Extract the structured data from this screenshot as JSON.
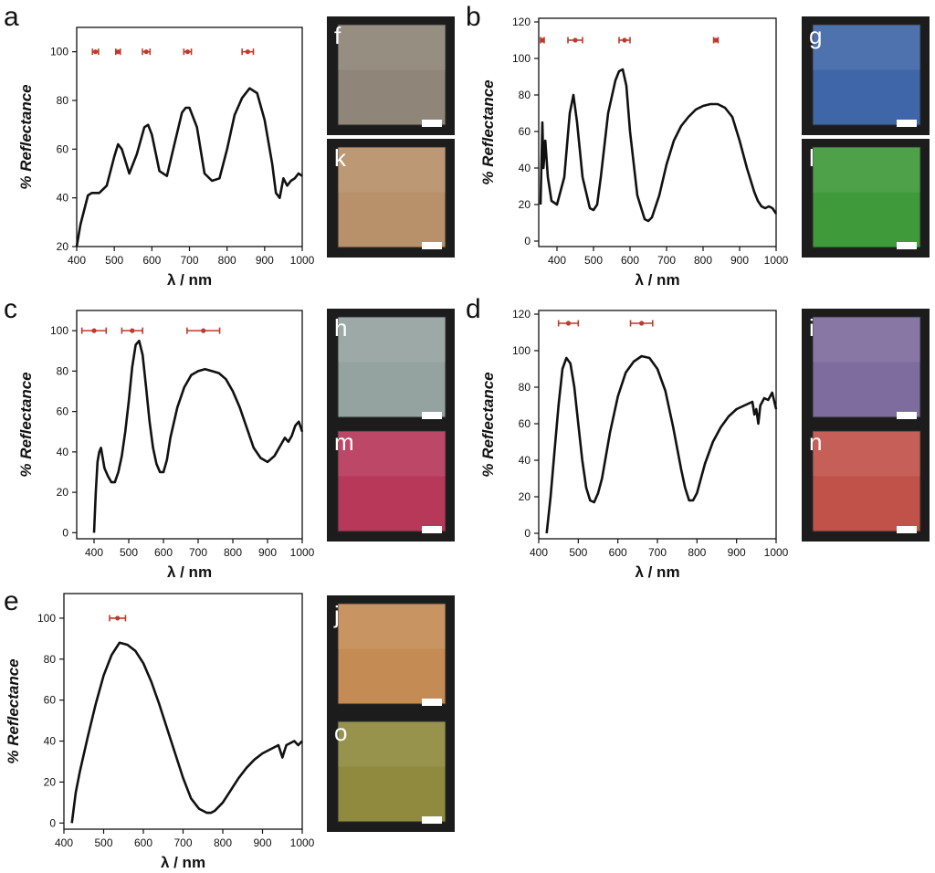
{
  "figure": {
    "colors": {
      "curve": "#111111",
      "marker": "#c0392b",
      "scale_bar": "#ffffff"
    }
  },
  "chart_data": [
    {
      "panel": "a",
      "type": "line",
      "xlabel": "λ / nm",
      "ylabel": "% Reflectance",
      "xlim": [
        400,
        1000
      ],
      "ylim": [
        20,
        110
      ],
      "xticks": [
        400,
        500,
        600,
        700,
        800,
        900,
        1000
      ],
      "yticks": [
        20,
        40,
        60,
        80,
        100
      ],
      "series": [
        {
          "name": "a",
          "x": [
            400,
            410,
            420,
            430,
            440,
            460,
            480,
            500,
            510,
            520,
            540,
            560,
            580,
            590,
            600,
            620,
            640,
            660,
            680,
            690,
            700,
            720,
            740,
            760,
            780,
            800,
            820,
            840,
            860,
            880,
            900,
            920,
            930,
            940,
            950,
            960,
            970,
            980,
            990,
            1000
          ],
          "y": [
            20,
            29,
            35,
            41,
            42,
            42,
            45,
            57,
            62,
            60,
            50,
            58,
            69,
            70,
            66,
            51,
            49,
            62,
            75,
            77,
            77,
            69,
            50,
            47,
            48,
            60,
            74,
            81,
            85,
            83,
            72,
            54,
            42,
            40,
            48,
            45,
            47,
            48,
            50,
            49
          ]
        }
      ],
      "markers": [
        {
          "x": 450,
          "err": 8,
          "y": 100
        },
        {
          "x": 510,
          "err": 6,
          "y": 100
        },
        {
          "x": 585,
          "err": 10,
          "y": 100
        },
        {
          "x": 695,
          "err": 10,
          "y": 100
        },
        {
          "x": 855,
          "err": 15,
          "y": 100
        }
      ]
    },
    {
      "panel": "b",
      "type": "line",
      "xlabel": "λ / nm",
      "ylabel": "% Reflectance",
      "xlim": [
        350,
        1000
      ],
      "ylim": [
        -3,
        122
      ],
      "xticks": [
        400,
        500,
        600,
        700,
        800,
        900,
        1000
      ],
      "yticks": [
        0,
        20,
        40,
        60,
        80,
        100,
        120
      ],
      "series": [
        {
          "name": "b",
          "x": [
            355,
            360,
            363,
            368,
            375,
            385,
            400,
            420,
            435,
            445,
            455,
            470,
            490,
            500,
            510,
            520,
            540,
            560,
            570,
            580,
            590,
            600,
            620,
            640,
            650,
            660,
            680,
            700,
            720,
            740,
            760,
            780,
            800,
            820,
            840,
            860,
            880,
            900,
            920,
            940,
            950,
            960,
            970,
            980,
            990,
            1000
          ],
          "y": [
            20,
            65,
            40,
            55,
            35,
            22,
            20,
            35,
            70,
            80,
            65,
            35,
            18,
            17,
            20,
            35,
            70,
            88,
            93,
            94,
            85,
            60,
            25,
            12,
            11,
            13,
            25,
            42,
            55,
            63,
            68,
            72,
            74,
            75,
            75,
            73,
            68,
            55,
            40,
            27,
            22,
            19,
            18,
            19,
            18,
            15
          ]
        }
      ],
      "markers": [
        {
          "x": 360,
          "err": 5,
          "y": 110
        },
        {
          "x": 450,
          "err": 20,
          "y": 110
        },
        {
          "x": 585,
          "err": 15,
          "y": 110
        },
        {
          "x": 835,
          "err": 6,
          "y": 110
        }
      ]
    },
    {
      "panel": "c",
      "type": "line",
      "xlabel": "λ / nm",
      "ylabel": "% Reflectance",
      "xlim": [
        350,
        1000
      ],
      "ylim": [
        -3,
        110
      ],
      "xticks": [
        400,
        500,
        600,
        700,
        800,
        900,
        1000
      ],
      "yticks": [
        0,
        20,
        40,
        60,
        80,
        100
      ],
      "series": [
        {
          "name": "c",
          "x": [
            400,
            405,
            410,
            415,
            420,
            430,
            440,
            450,
            460,
            470,
            480,
            490,
            500,
            510,
            520,
            530,
            540,
            550,
            560,
            570,
            580,
            590,
            600,
            610,
            620,
            640,
            660,
            680,
            700,
            720,
            740,
            760,
            780,
            800,
            820,
            840,
            860,
            880,
            900,
            920,
            940,
            950,
            960,
            970,
            980,
            990,
            1000
          ],
          "y": [
            0,
            20,
            35,
            40,
            42,
            32,
            28,
            25,
            25,
            30,
            38,
            50,
            65,
            82,
            93,
            95,
            88,
            72,
            55,
            42,
            34,
            30,
            30,
            36,
            47,
            62,
            72,
            78,
            80,
            81,
            80,
            79,
            76,
            70,
            62,
            52,
            42,
            37,
            35,
            38,
            44,
            47,
            45,
            48,
            53,
            55,
            50
          ]
        }
      ],
      "markers": [
        {
          "x": 400,
          "err": 35,
          "y": 100
        },
        {
          "x": 510,
          "err": 30,
          "y": 100
        },
        {
          "x": 715,
          "err": 47,
          "y": 100
        }
      ]
    },
    {
      "panel": "d",
      "type": "line",
      "xlabel": "λ / nm",
      "ylabel": "% Reflectance",
      "xlim": [
        400,
        1000
      ],
      "ylim": [
        -3,
        122
      ],
      "xticks": [
        400,
        500,
        600,
        700,
        800,
        900,
        1000
      ],
      "yticks": [
        0,
        20,
        40,
        60,
        80,
        100,
        120
      ],
      "series": [
        {
          "name": "d",
          "x": [
            420,
            430,
            440,
            450,
            460,
            470,
            480,
            490,
            500,
            510,
            520,
            530,
            540,
            550,
            560,
            580,
            600,
            620,
            640,
            660,
            680,
            700,
            720,
            740,
            760,
            770,
            780,
            790,
            800,
            820,
            840,
            860,
            880,
            900,
            920,
            940,
            945,
            950,
            955,
            960,
            970,
            980,
            990,
            1000
          ],
          "y": [
            0,
            20,
            45,
            70,
            90,
            96,
            93,
            80,
            60,
            40,
            25,
            18,
            17,
            22,
            30,
            55,
            75,
            88,
            94,
            97,
            96,
            90,
            78,
            58,
            35,
            25,
            18,
            18,
            22,
            38,
            50,
            58,
            64,
            68,
            70,
            72,
            65,
            68,
            60,
            70,
            74,
            73,
            77,
            68
          ]
        }
      ],
      "markers": [
        {
          "x": 475,
          "err": 25,
          "y": 115
        },
        {
          "x": 660,
          "err": 28,
          "y": 115
        }
      ]
    },
    {
      "panel": "e",
      "type": "line",
      "xlabel": "λ / nm",
      "ylabel": "% Reflectance",
      "xlim": [
        400,
        1000
      ],
      "ylim": [
        -3,
        112
      ],
      "xticks": [
        400,
        500,
        600,
        700,
        800,
        900,
        1000
      ],
      "yticks": [
        0,
        20,
        40,
        60,
        80,
        100
      ],
      "series": [
        {
          "name": "e",
          "x": [
            420,
            430,
            440,
            460,
            480,
            500,
            520,
            540,
            560,
            580,
            600,
            620,
            640,
            660,
            680,
            700,
            720,
            740,
            760,
            770,
            780,
            800,
            820,
            840,
            860,
            880,
            900,
            920,
            940,
            950,
            955,
            960,
            980,
            990,
            1000
          ],
          "y": [
            0,
            15,
            25,
            42,
            58,
            72,
            82,
            88,
            87,
            84,
            78,
            69,
            58,
            46,
            34,
            22,
            12,
            7,
            5,
            5,
            6,
            10,
            16,
            22,
            27,
            31,
            34,
            36,
            38,
            32,
            35,
            38,
            40,
            38,
            40
          ]
        }
      ],
      "markers": [
        {
          "x": 535,
          "err": 20,
          "y": 100
        }
      ]
    }
  ],
  "panels": {
    "a": "a",
    "b": "b",
    "c": "c",
    "d": "d",
    "e": "e"
  },
  "photos": [
    {
      "label": "f",
      "bg": "#8f8578"
    },
    {
      "label": "k",
      "bg": "#b8906a"
    },
    {
      "label": "g",
      "bg": "#3f66a8"
    },
    {
      "label": "l",
      "bg": "#3f9a3a"
    },
    {
      "label": "h",
      "bg": "#94a2a0"
    },
    {
      "label": "m",
      "bg": "#b8385a"
    },
    {
      "label": "i",
      "bg": "#7e6c9e"
    },
    {
      "label": "n",
      "bg": "#c0524a"
    },
    {
      "label": "j",
      "bg": "#c48b55"
    },
    {
      "label": "o",
      "bg": "#8f8a3e"
    }
  ]
}
